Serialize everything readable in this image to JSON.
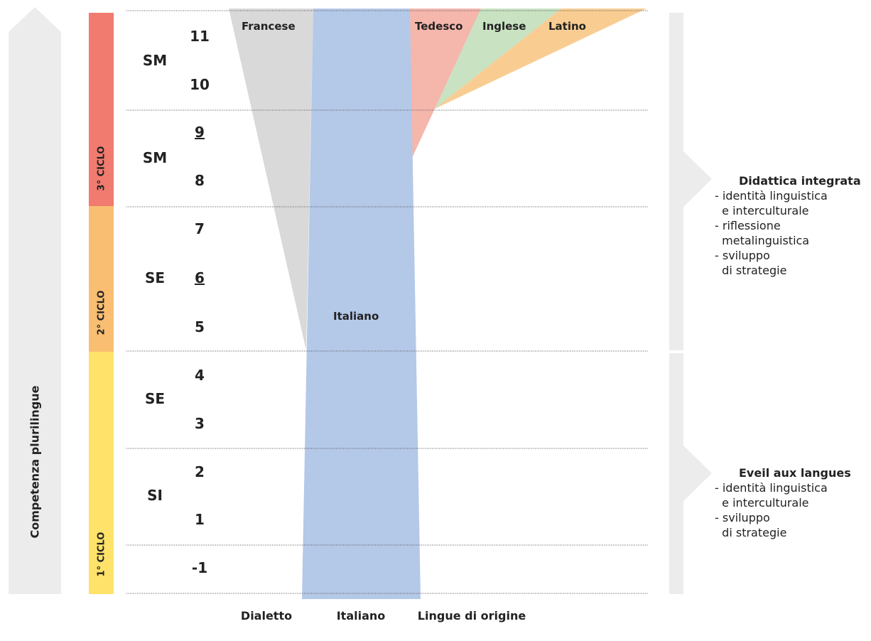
{
  "side_label": "Competenza plurilingue",
  "cycles": [
    {
      "label": "3° CICLO",
      "color": "#f07b6e"
    },
    {
      "label": "2° CICLO",
      "color": "#f9be72"
    },
    {
      "label": "1° CICLO",
      "color": "#ffe26a"
    }
  ],
  "schools": [
    "SM",
    "SM",
    "SE",
    "SE",
    "SI"
  ],
  "grades": [
    "11",
    "10",
    "9",
    "8",
    "7",
    "6",
    "5",
    "4",
    "3",
    "2",
    "1",
    "-1"
  ],
  "underlined_grades": [
    "9",
    "6"
  ],
  "languages": {
    "francese": "Francese",
    "italiano": "Italiano",
    "tedesco": "Tedesco",
    "inglese": "Inglese",
    "latino": "Latino"
  },
  "bottom_labels": [
    "Dialetto",
    "Italiano",
    "Lingue di origine"
  ],
  "right_panels": [
    {
      "title": "Didattica integrata",
      "items": [
        "- identità linguistica",
        "  e interculturale",
        "- riflessione",
        "  metalinguistica",
        "- sviluppo",
        "  di strategie"
      ]
    },
    {
      "title": "Eveil aux langues",
      "items": [
        "- identità linguistica",
        "  e interculturale",
        "- sviluppo",
        "  di strategie"
      ]
    }
  ],
  "colors": {
    "francese": "#d9d9d9",
    "italiano": "#b4c8e8",
    "tedesco": "#f5b6ac",
    "inglese": "#c8e2c2",
    "latino": "#f9cd92",
    "arrow": "#ececec"
  }
}
